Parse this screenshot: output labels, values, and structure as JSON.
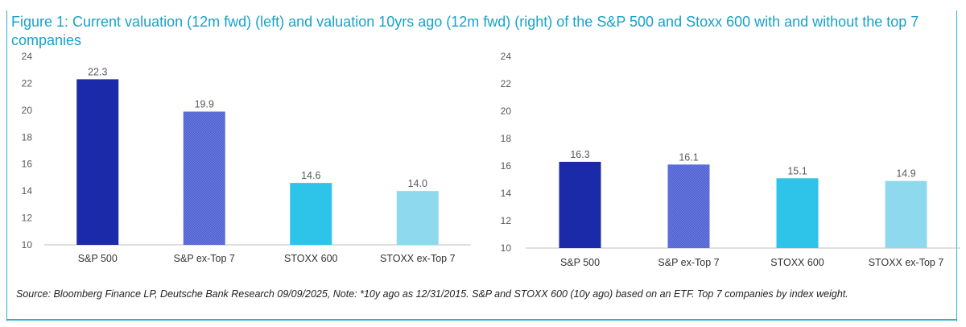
{
  "header": {
    "title": "Figure 1: Current valuation (12m fwd) (left) and valuation 10yrs ago (12m fwd) (right) of the S&P 500 and Stoxx 600 with  and without the top 7 companies"
  },
  "footer": {
    "source": "Source: Bloomberg Finance LP, Deutsche Bank Research 09/09/2025, Note: *10y ago as 12/31/2015. S&P and STOXX 600 (10y ago) based on an ETF. Top 7 companies by index weight."
  },
  "colors": {
    "title": "#17a2c9",
    "bars": [
      "#1a2aa8",
      "#4a5bd0",
      "#2ec4ea",
      "#8fd9ee"
    ]
  },
  "chart_data": [
    {
      "type": "bar",
      "title": "Current valuation (12m fwd)",
      "categories": [
        "S&P 500",
        "S&P ex-Top 7",
        "STOXX 600",
        "STOXX ex-Top 7"
      ],
      "values": [
        22.3,
        19.9,
        14.6,
        14.0
      ],
      "value_labels": [
        "22.3",
        "19.9",
        "14.6",
        "14.0"
      ],
      "yticks": [
        "10",
        "12",
        "14",
        "16",
        "18",
        "20",
        "22",
        "24"
      ],
      "ylim": [
        10,
        24
      ],
      "xlabel": "",
      "ylabel": ""
    },
    {
      "type": "bar",
      "title": "Valuation 10yrs ago (12m fwd)",
      "categories": [
        "S&P 500",
        "S&P ex-Top 7",
        "STOXX 600",
        "STOXX ex-Top 7"
      ],
      "values": [
        16.3,
        16.1,
        15.1,
        14.9
      ],
      "value_labels": [
        "16.3",
        "16.1",
        "15.1",
        "14.9"
      ],
      "yticks": [
        "10",
        "12",
        "14",
        "16",
        "18",
        "20",
        "22",
        "24"
      ],
      "ylim": [
        10,
        24
      ],
      "xlabel": "",
      "ylabel": ""
    }
  ]
}
